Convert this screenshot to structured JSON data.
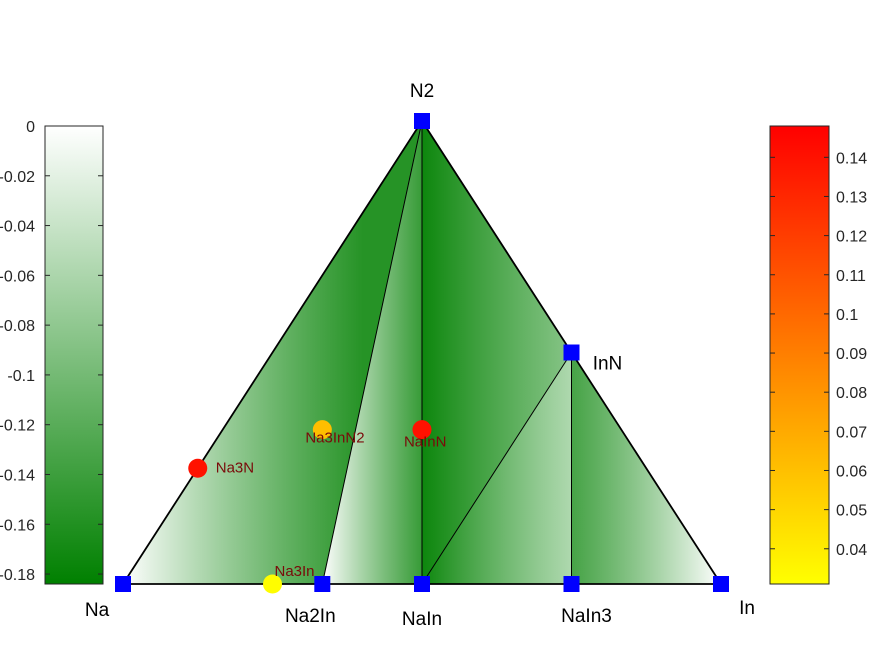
{
  "chart_data": {
    "type": "ternary_phase_diagram",
    "corners": [
      "Na",
      "In",
      "N2"
    ],
    "stable_phases": [
      {
        "name": "Na",
        "x_In": 0.0,
        "x_N": 0.0
      },
      {
        "name": "In",
        "x_In": 1.0,
        "x_N": 0.0
      },
      {
        "name": "N2",
        "x_In": 0.0,
        "x_N": 1.0
      },
      {
        "name": "InN",
        "x_In": 0.5,
        "x_N": 0.5
      },
      {
        "name": "Na2In",
        "x_In": 0.3333,
        "x_N": 0.0
      },
      {
        "name": "NaIn",
        "x_In": 0.5,
        "x_N": 0.0
      },
      {
        "name": "NaIn3",
        "x_In": 0.75,
        "x_N": 0.0
      }
    ],
    "tie_lines": [
      [
        "Na2In",
        "N2"
      ],
      [
        "NaIn",
        "N2"
      ],
      [
        "NaIn",
        "InN"
      ],
      [
        "NaIn3",
        "InN"
      ]
    ],
    "unstable_phases": [
      {
        "name": "Na3N",
        "x_In": 0.0,
        "x_N": 0.25,
        "e_above_hull": 0.14
      },
      {
        "name": "NaInN",
        "x_In": 0.3333,
        "x_N": 0.3333,
        "e_above_hull": 0.14
      },
      {
        "name": "Na3InN2",
        "x_In": 0.1667,
        "x_N": 0.3333,
        "e_above_hull": 0.061
      },
      {
        "name": "Na3In",
        "x_In": 0.25,
        "x_N": 0.0,
        "e_above_hull": 0.032
      }
    ],
    "formation_energy_colorbar": {
      "ticks": [
        "0",
        "-0.02",
        "-0.04",
        "-0.06",
        "-0.08",
        "-0.1",
        "-0.12",
        "-0.14",
        "-0.16",
        "-0.18"
      ],
      "range": [
        -0.184,
        0
      ],
      "colors": [
        "#008000",
        "#ffffff"
      ]
    },
    "e_above_hull_colorbar": {
      "ticks": [
        "0.04",
        "0.05",
        "0.06",
        "0.07",
        "0.08",
        "0.09",
        "0.1",
        "0.11",
        "0.12",
        "0.13",
        "0.14"
      ],
      "range": [
        0.031,
        0.148
      ],
      "colors": [
        "#ffff00",
        "#ff0000"
      ]
    },
    "colors": {
      "stable_marker": "#0000ff",
      "hull_line": "#000000",
      "label": "#7a0a0a"
    }
  }
}
